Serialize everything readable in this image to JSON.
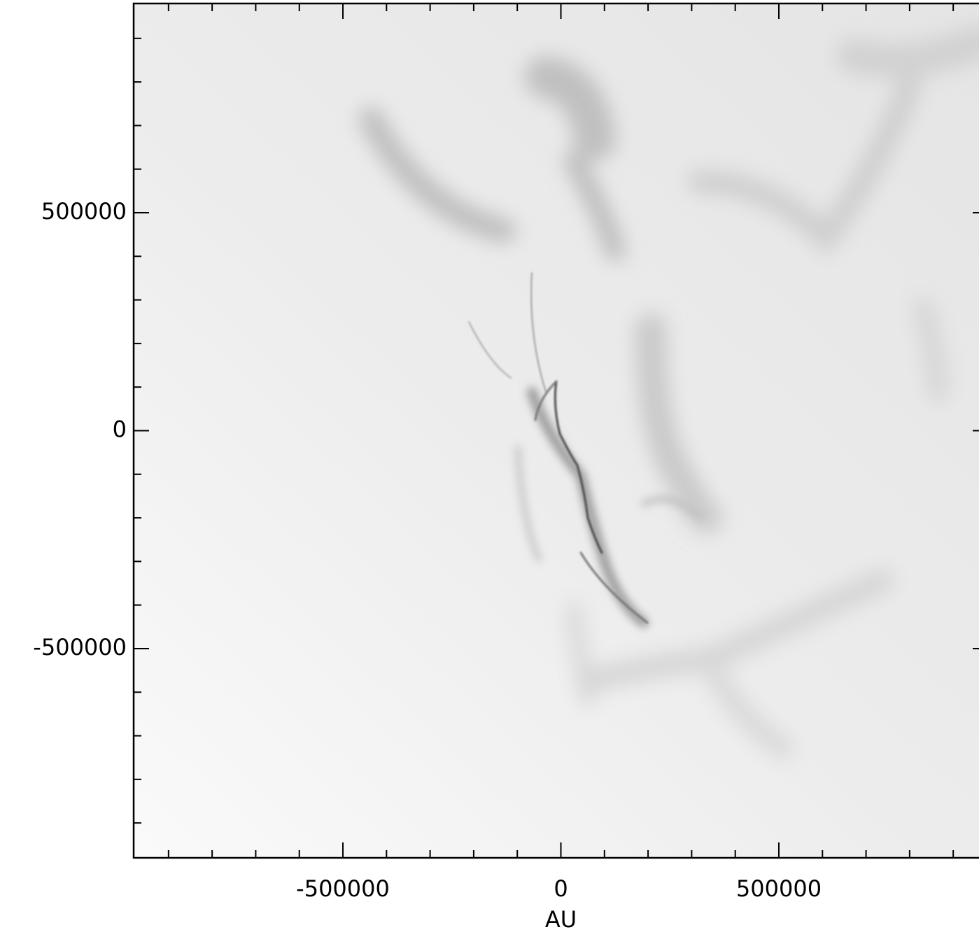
{
  "chart_data": {
    "type": "image",
    "xlabel": "AU",
    "xlim": [
      -980000,
      980000
    ],
    "ylim": [
      -980000,
      980000
    ],
    "xticks": [
      -500000,
      0,
      500000
    ],
    "yticks": [
      -500000,
      0,
      500000
    ],
    "x_minor_ticks": [
      -900000,
      -800000,
      -700000,
      -600000,
      -400000,
      -300000,
      -200000,
      -100000,
      100000,
      200000,
      300000,
      400000,
      600000,
      700000,
      800000,
      900000
    ],
    "y_minor_ticks": [
      -900000,
      -800000,
      -700000,
      -600000,
      -400000,
      -300000,
      -200000,
      -100000,
      100000,
      200000,
      300000,
      400000,
      600000,
      700000,
      800000,
      900000
    ],
    "colormap": "gray_r"
  }
}
